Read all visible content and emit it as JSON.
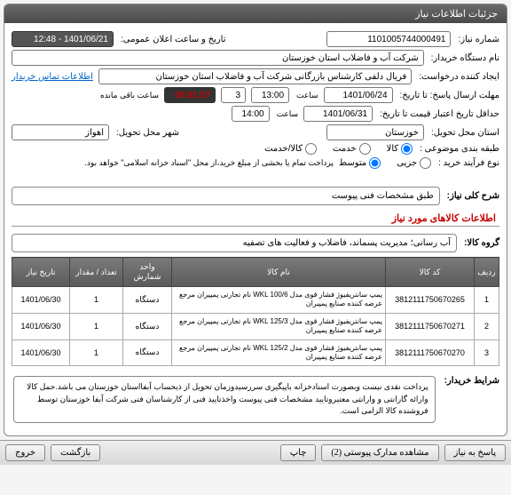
{
  "header": {
    "title": "جزئیات اطلاعات نیاز"
  },
  "info": {
    "need_no_lbl": "شماره نیاز:",
    "need_no": "1101005744000491",
    "ann_lbl": "تاریخ و ساعت اعلان عمومی:",
    "ann_val": "1401/06/21 - 12:48",
    "buyer_lbl": "نام دستگاه خریدار:",
    "buyer": "شرکت آب و فاضلاب استان خوزستان",
    "creator_lbl": "ایجاد کننده درخواست:",
    "creator": "فریال دلفی کارشناس بازرگانی شرکت آب و فاضلاب استان خوزستان",
    "contact_link": "اطلاعات تماس خریدار",
    "deadline_lbl": "مهلت ارسال پاسخ: تا تاریخ:",
    "deadline_date": "1401/06/24",
    "time_lbl": "ساعت",
    "deadline_time": "13:00",
    "days": "3",
    "remain_lbl": "ساعت باقی مانده",
    "remain_time": "00:01:57",
    "valid_lbl": "حداقل تاریخ اعتبار قیمت تا تاریخ:",
    "valid_date": "1401/06/31",
    "valid_time": "14:00",
    "prov_lbl": "استان محل تحویل:",
    "prov": "خوزستان",
    "city_lbl": "شهر محل تحویل:",
    "city": "اهواز",
    "class_lbl": "طبقه بندی موضوعی :",
    "class_opts": {
      "a": "کالا",
      "b": "خدمت",
      "c": "کالا/خدمت"
    },
    "class_sel": "a",
    "proc_lbl": "نوع فرآیند خرید :",
    "proc_opts": {
      "a": "جزیی",
      "b": "متوسط"
    },
    "proc_sel": "b",
    "proc_note": "پرداخت تمام یا بخشی از مبلغ خرید،از محل \"اسناد خزانه اسلامی\" خواهد بود."
  },
  "desc": {
    "title_lbl": "شرح کلی نیاز:",
    "title_val": "طبق مشخصات فنی پیوست",
    "goods_lbl": "اطلاعات کالاهای مورد نیاز",
    "group_lbl": "گروه کالا:",
    "group_val": "آب رسانی؛ مدیریت پسماند، فاضلاب و فعالیت های تصفیه"
  },
  "table": {
    "headers": {
      "row": "ردیف",
      "code": "کد کالا",
      "name": "نام کالا",
      "unit": "واحد شمارش",
      "qty": "تعداد / مقدار",
      "date": "تاریخ نیاز"
    },
    "rows": [
      {
        "n": "1",
        "code": "3812111750670265",
        "name": "پمپ سانتریفیوژ فشار قوی مدل WKL 100/6 نام تجارتی پمپیران مرجع عرضه کننده صنایع پمپیران",
        "unit": "دستگاه",
        "qty": "1",
        "date": "1401/06/30"
      },
      {
        "n": "2",
        "code": "3812111750670271",
        "name": "پمپ سانتریفیوژ فشار قوی مدل WKL 125/3 نام تجارتی پمپیران مرجع عرضه کننده صنایع پمپیران",
        "unit": "دستگاه",
        "qty": "1",
        "date": "1401/06/30"
      },
      {
        "n": "3",
        "code": "3812111750670270",
        "name": "پمپ سانتریفیوژ فشار قوی مدل WKL 125/2 نام تجارتی پمپیران مرجع عرضه کننده صنایع پمپیران",
        "unit": "دستگاه",
        "qty": "1",
        "date": "1401/06/30"
      }
    ]
  },
  "note": {
    "lbl": "شرایط خریدار:",
    "text": "پرداخت نقدی نیست وبصورت اسنادخزانه باپیگیری سررسیدوزمان تحویل از ذیحساب آبفااستان خوزستان می باشد.حمل کالا وارائه گارانتی و وارانتی معتبروتایید مشخصات فنی پیوست واخذتایید فنی از کارشناسان فنی شرکت آبفا خوزستان توسط فروشنده کالا الزامی است."
  },
  "buttons": {
    "reply": "پاسخ به نیاز",
    "attach": "مشاهده مدارک پیوستی (2)",
    "print": "چاپ",
    "back": "بازگشت",
    "exit": "خروج"
  }
}
